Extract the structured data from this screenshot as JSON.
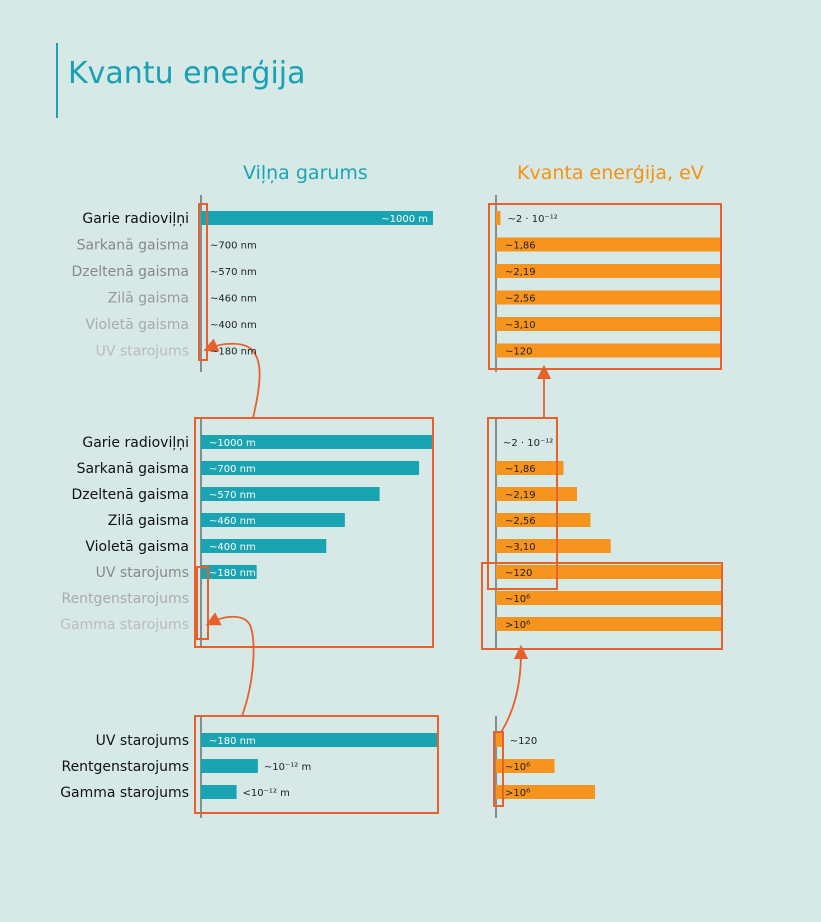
{
  "title": "Kvantu enerģija",
  "wave_title": "Viļņa garums",
  "energy_title": "Kvanta enerģija, eV",
  "colors": {
    "teal": "#1aa3b0",
    "orange": "#f7941d",
    "frame": "#e8602c",
    "background": "#d6e9e6"
  },
  "chart_data": [
    {
      "type": "bar",
      "panel": "top",
      "categories": [
        "Garie radioviļņi",
        "Sarkanā gaisma",
        "Dzeltenā gaisma",
        "Zilā gaisma",
        "Violetā gaisma",
        "UV starojums"
      ],
      "wavelength_labels": [
        "~1000 m",
        "~700 nm",
        "~570 nm",
        "~460 nm",
        "~400 nm",
        "~180 nm"
      ],
      "energy_labels": [
        "~2 · 10⁻¹²",
        "~1,86",
        "~2,19",
        "~2,56",
        "~3,10",
        "~120"
      ],
      "wavelength_bar_fraction": [
        1,
        0,
        0,
        0,
        0,
        0
      ],
      "energy_bar_fraction": [
        0.02,
        1,
        1,
        1,
        1,
        1
      ]
    },
    {
      "type": "bar",
      "panel": "middle",
      "categories": [
        "Garie radioviļņi",
        "Sarkanā gaisma",
        "Dzeltenā gaisma",
        "Zilā gaisma",
        "Violetā gaisma",
        "UV starojums",
        "Rentgenstarojums",
        "Gamma starojums"
      ],
      "wavelength_labels": [
        "~1000 m",
        "~700 nm",
        "~570 nm",
        "~460 nm",
        "~400 nm",
        "~180 nm",
        "",
        ""
      ],
      "energy_labels": [
        "~2 · 10⁻¹²",
        "~1,86",
        "~2,19",
        "~2,56",
        "~3,10",
        "~120",
        "~10⁶",
        ">10⁶"
      ],
      "wavelength_bar_fraction": [
        1,
        0.94,
        0.77,
        0.62,
        0.54,
        0.24,
        0,
        0
      ],
      "energy_bar_fraction": [
        0,
        0.3,
        0.36,
        0.42,
        0.51,
        1,
        1,
        1
      ]
    },
    {
      "type": "bar",
      "panel": "bottom",
      "categories": [
        "UV starojums",
        "Rentgenstarojums",
        "Gamma starojums"
      ],
      "wavelength_labels": [
        "~180 nm",
        "~10⁻¹² m",
        "<10⁻¹² m"
      ],
      "energy_labels": [
        "~120",
        "~10⁶",
        ">10⁶"
      ],
      "wavelength_bar_fraction": [
        1,
        0.24,
        0.15
      ],
      "energy_bar_fraction": [
        0.03,
        0.26,
        0.44
      ]
    }
  ]
}
